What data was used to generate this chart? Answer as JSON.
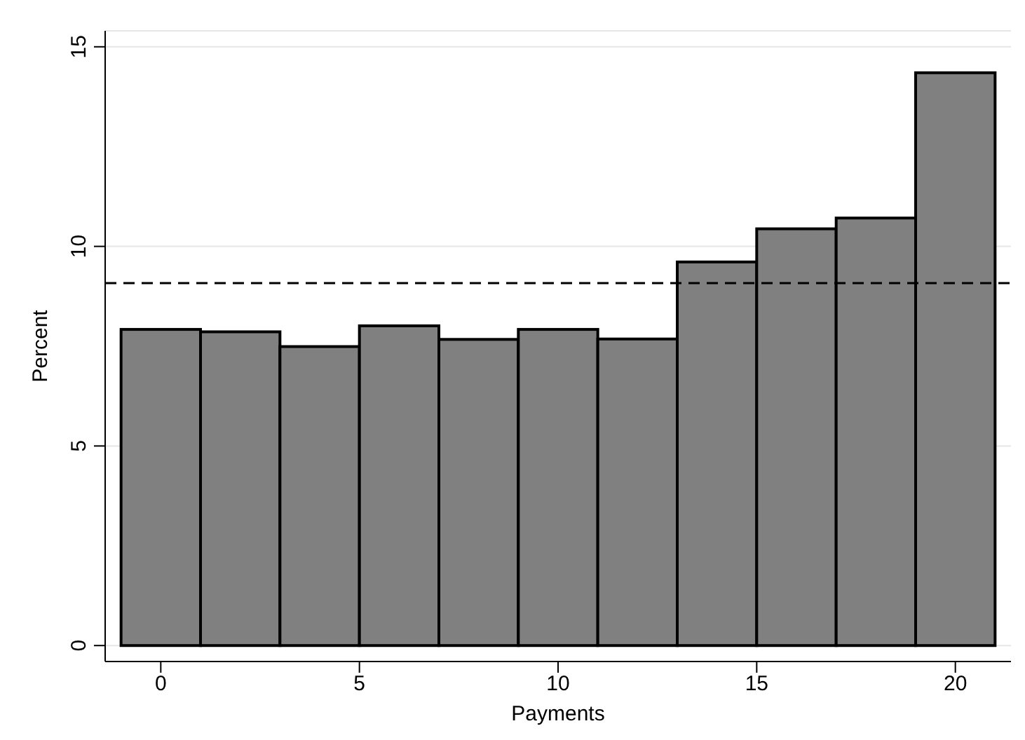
{
  "chart_data": {
    "type": "histogram",
    "xlabel": "Payments",
    "ylabel": "Percent",
    "bins": [
      -1,
      1,
      3,
      5,
      7,
      9,
      11,
      13,
      15,
      17,
      19,
      21
    ],
    "values": [
      7.92,
      7.86,
      7.49,
      8.01,
      7.67,
      7.92,
      7.68,
      9.61,
      10.44,
      10.71,
      14.35
    ],
    "color": "#808080",
    "xlim": [
      -1.4,
      21.4
    ],
    "xticks": [
      0,
      5,
      10,
      15,
      20
    ],
    "ylim": [
      -0.4,
      15.4
    ],
    "yticks": [
      0,
      5,
      10,
      15
    ],
    "grid": "y",
    "ref_lines": [
      {
        "axis": "y",
        "value": 9.08,
        "color": "#000000",
        "line_style": "dashed"
      }
    ]
  }
}
